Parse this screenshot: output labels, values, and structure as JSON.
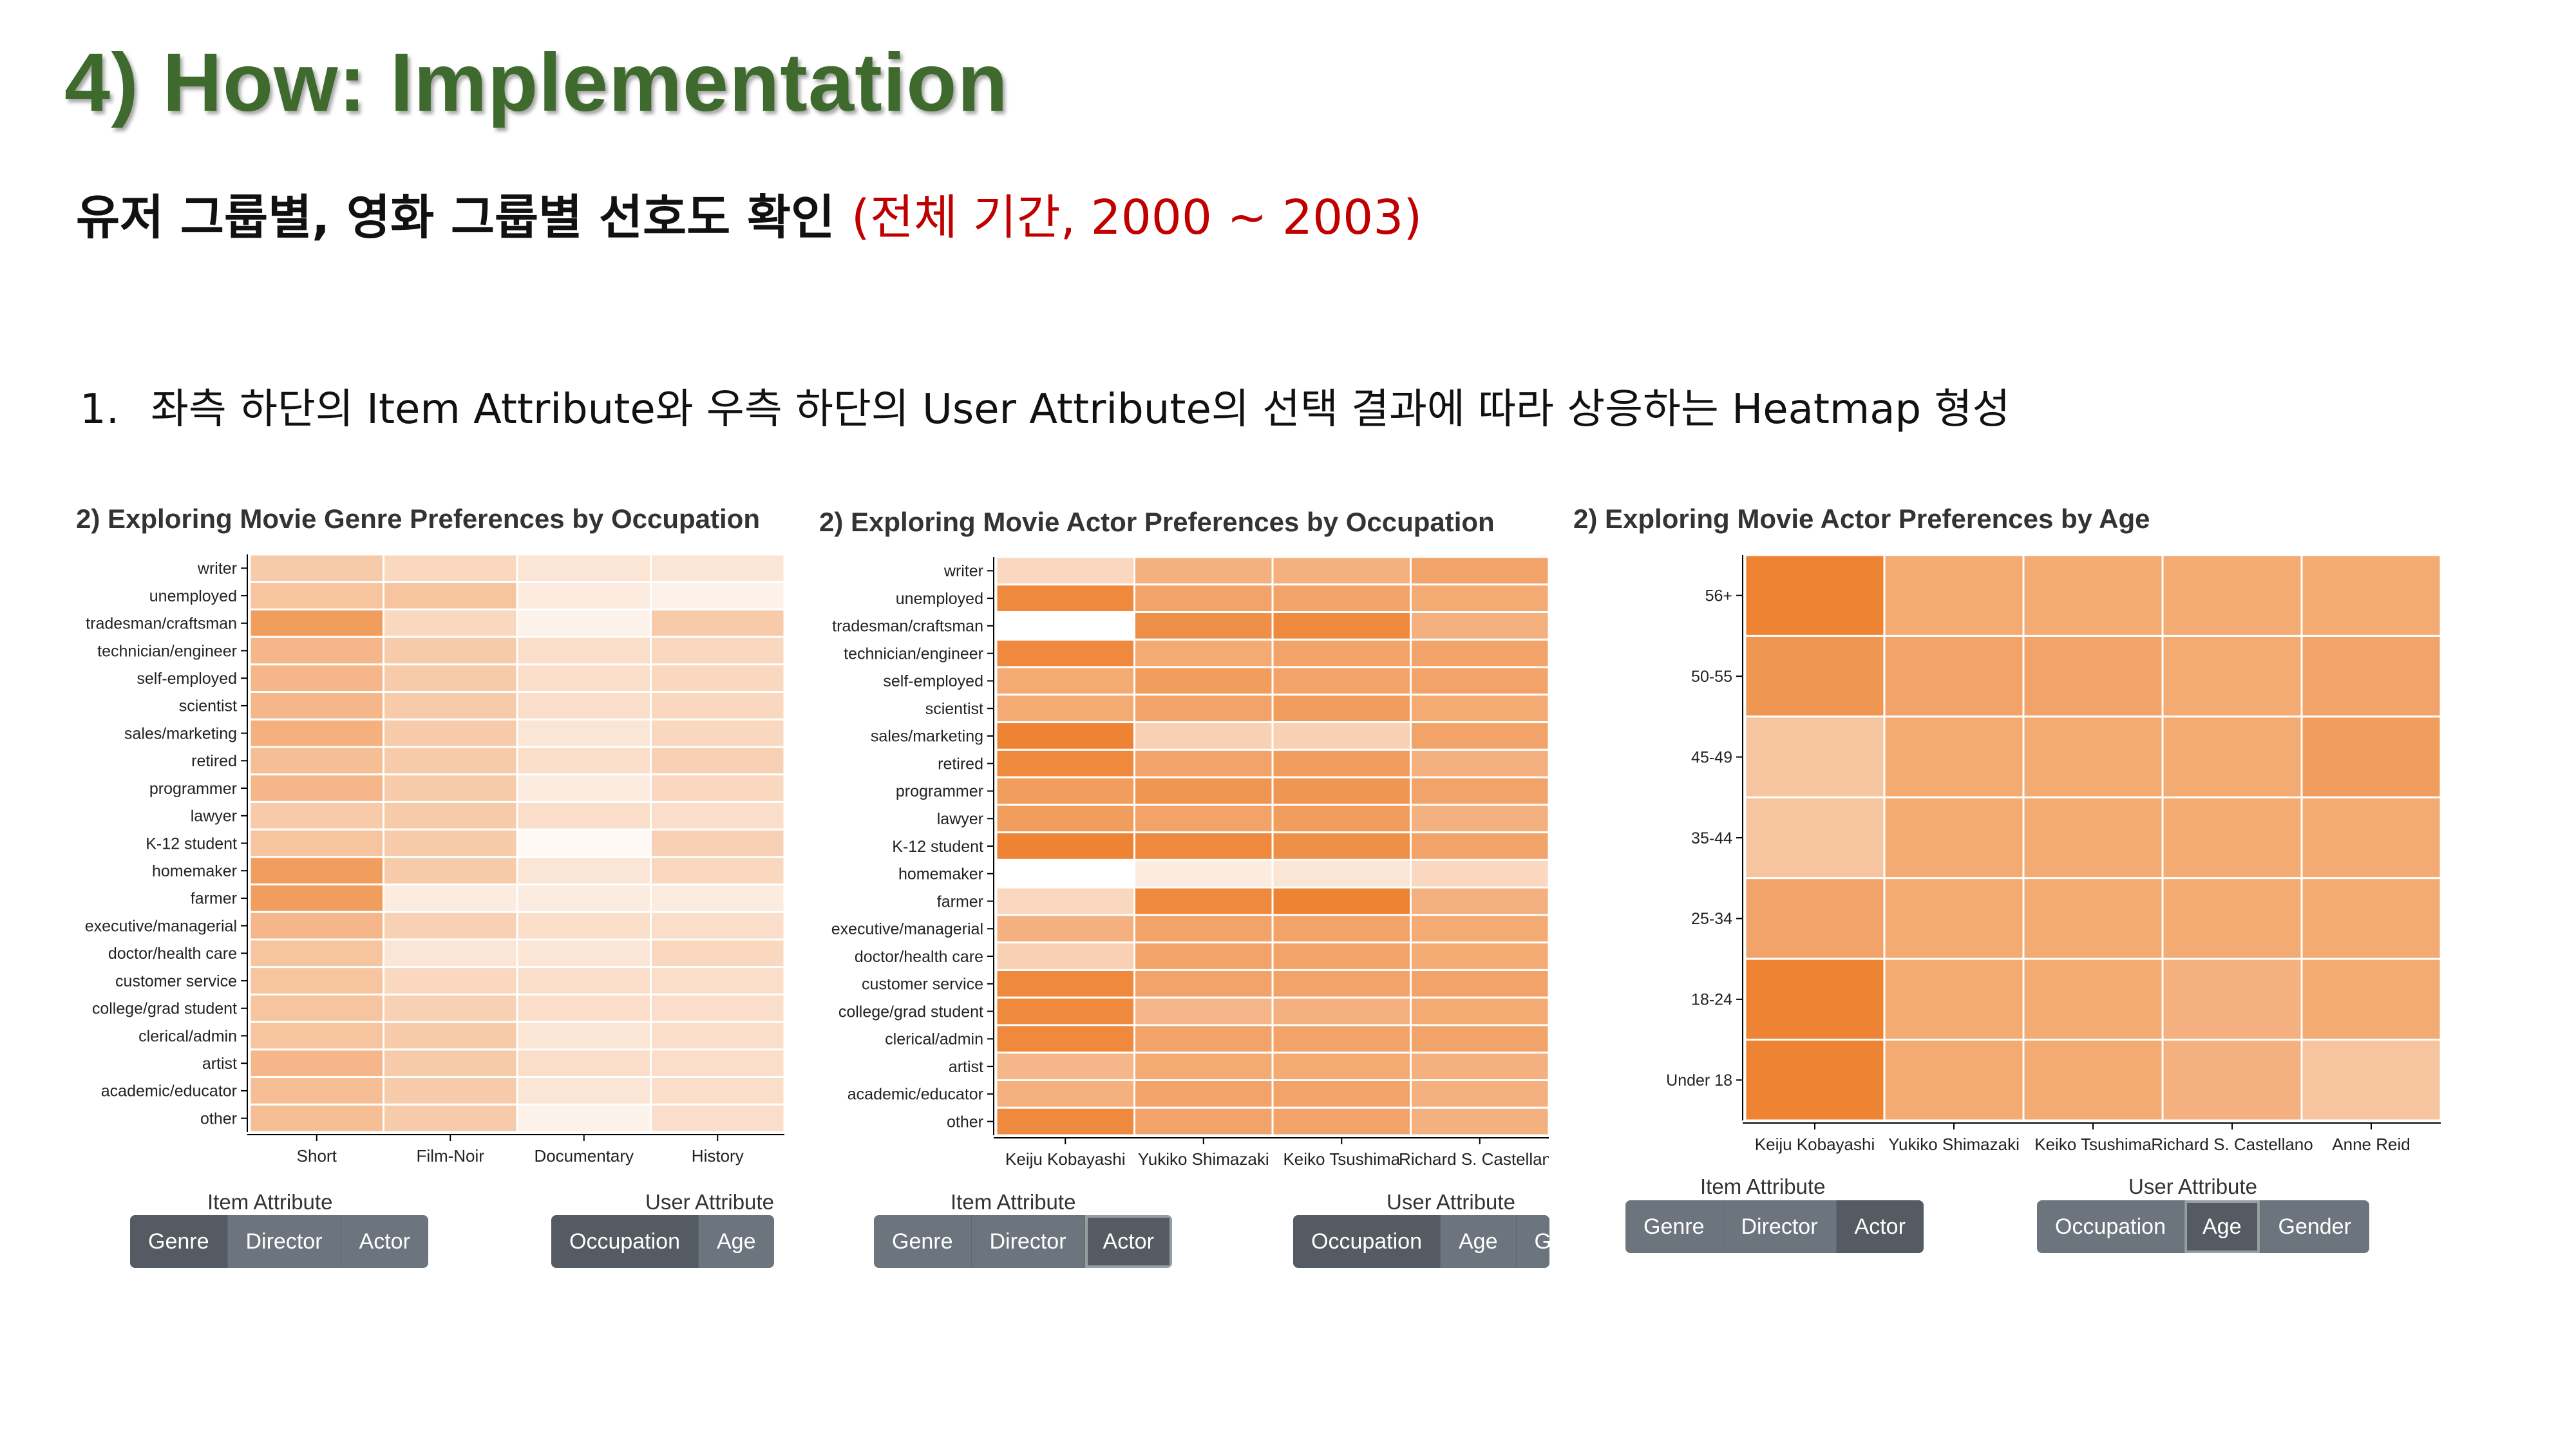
{
  "slide": {
    "title": "4) How: Implementation",
    "subtitle": "유저 그룹별, 영화 그룹별 선호도 확인",
    "subtitle_highlight": "(전체 기간, 2000 ~ 2003)",
    "bullet_number": "1.",
    "bullet_text": "좌측 하단의 Item Attribute와 우측 하단의 User Attribute의 선택 결과에 따라 상응하는 Heatmap 형성"
  },
  "colors": {
    "title": "#3f6a2d",
    "highlight": "#c00000",
    "button": "#6c757d",
    "button_active": "#545b62"
  },
  "controls": {
    "item_label": "Item Attribute",
    "user_label": "User Attribute",
    "item_buttons": [
      "Genre",
      "Director",
      "Actor"
    ],
    "user_buttons_1": [
      "Occupation",
      "Age"
    ],
    "user_buttons_2": [
      "Occupation",
      "Age",
      "Ge"
    ],
    "user_buttons_3": [
      "Occupation",
      "Age",
      "Gender"
    ]
  },
  "panels": [
    {
      "active_item": "Genre",
      "active_user": "Occupation"
    },
    {
      "active_item": "Actor",
      "active_user": "Occupation"
    },
    {
      "active_item": "Actor",
      "active_user": "Age"
    }
  ],
  "chart_data": [
    {
      "type": "heatmap",
      "title": "2) Exploring Movie Genre Preferences by Occupation",
      "x": [
        "Short",
        "Film-Noir",
        "Documentary",
        "History"
      ],
      "y": [
        "writer",
        "unemployed",
        "tradesman/craftsman",
        "technician/engineer",
        "self-employed",
        "scientist",
        "sales/marketing",
        "retired",
        "programmer",
        "lawyer",
        "K-12 student",
        "homemaker",
        "farmer",
        "executive/managerial",
        "doctor/health care",
        "customer service",
        "college/grad student",
        "clerical/admin",
        "artist",
        "academic/educator",
        "other"
      ],
      "values": [
        [
          0.4,
          0.3,
          0.2,
          0.2
        ],
        [
          0.45,
          0.45,
          0.15,
          0.1
        ],
        [
          0.75,
          0.3,
          0.1,
          0.4
        ],
        [
          0.55,
          0.4,
          0.25,
          0.3
        ],
        [
          0.55,
          0.4,
          0.25,
          0.3
        ],
        [
          0.55,
          0.4,
          0.25,
          0.3
        ],
        [
          0.6,
          0.4,
          0.2,
          0.3
        ],
        [
          0.5,
          0.4,
          0.25,
          0.35
        ],
        [
          0.55,
          0.4,
          0.15,
          0.3
        ],
        [
          0.4,
          0.4,
          0.25,
          0.25
        ],
        [
          0.45,
          0.4,
          0.05,
          0.35
        ],
        [
          0.75,
          0.4,
          0.2,
          0.3
        ],
        [
          0.75,
          0.15,
          0.15,
          0.15
        ],
        [
          0.55,
          0.35,
          0.25,
          0.25
        ],
        [
          0.45,
          0.2,
          0.2,
          0.3
        ],
        [
          0.45,
          0.3,
          0.25,
          0.25
        ],
        [
          0.45,
          0.35,
          0.25,
          0.25
        ],
        [
          0.45,
          0.4,
          0.2,
          0.25
        ],
        [
          0.55,
          0.4,
          0.25,
          0.25
        ],
        [
          0.5,
          0.4,
          0.2,
          0.25
        ],
        [
          0.5,
          0.4,
          0.1,
          0.25
        ]
      ]
    },
    {
      "type": "heatmap",
      "title": "2) Exploring Movie Actor Preferences by Occupation",
      "x": [
        "Keiju Kobayashi",
        "Yukiko Shimazaki",
        "Keiko Tsushima",
        "Richard S. Castellano"
      ],
      "y": [
        "writer",
        "unemployed",
        "tradesman/craftsman",
        "technician/engineer",
        "self-employed",
        "scientist",
        "sales/marketing",
        "retired",
        "programmer",
        "lawyer",
        "K-12 student",
        "homemaker",
        "farmer",
        "executive/managerial",
        "doctor/health care",
        "customer service",
        "college/grad student",
        "clerical/admin",
        "artist",
        "academic/educator",
        "other"
      ],
      "values": [
        [
          0.3,
          0.6,
          0.6,
          0.7
        ],
        [
          0.9,
          0.7,
          0.7,
          0.65
        ],
        [
          0.0,
          0.85,
          0.9,
          0.6
        ],
        [
          0.9,
          0.65,
          0.7,
          0.7
        ],
        [
          0.65,
          0.75,
          0.7,
          0.7
        ],
        [
          0.65,
          0.7,
          0.75,
          0.65
        ],
        [
          0.95,
          0.35,
          0.35,
          0.7
        ],
        [
          0.9,
          0.7,
          0.75,
          0.6
        ],
        [
          0.75,
          0.8,
          0.8,
          0.7
        ],
        [
          0.75,
          0.7,
          0.75,
          0.6
        ],
        [
          0.95,
          0.9,
          0.85,
          0.7
        ],
        [
          0.0,
          0.15,
          0.2,
          0.3
        ],
        [
          0.3,
          0.9,
          0.95,
          0.6
        ],
        [
          0.6,
          0.7,
          0.7,
          0.65
        ],
        [
          0.35,
          0.7,
          0.7,
          0.65
        ],
        [
          0.9,
          0.7,
          0.7,
          0.7
        ],
        [
          0.9,
          0.55,
          0.6,
          0.65
        ],
        [
          0.9,
          0.7,
          0.7,
          0.7
        ],
        [
          0.55,
          0.65,
          0.65,
          0.6
        ],
        [
          0.6,
          0.7,
          0.7,
          0.6
        ],
        [
          0.9,
          0.7,
          0.7,
          0.6
        ]
      ]
    },
    {
      "type": "heatmap",
      "title": "2) Exploring Movie Actor Preferences by Age",
      "x": [
        "Keiju Kobayashi",
        "Yukiko Shimazaki",
        "Keiko Tsushima",
        "Richard S. Castellano",
        "Anne Reid"
      ],
      "y": [
        "56+",
        "50-55",
        "45-49",
        "35-44",
        "25-34",
        "18-24",
        "Under 18"
      ],
      "values": [
        [
          0.95,
          0.65,
          0.65,
          0.65,
          0.65
        ],
        [
          0.8,
          0.7,
          0.7,
          0.65,
          0.7
        ],
        [
          0.45,
          0.65,
          0.65,
          0.65,
          0.75
        ],
        [
          0.45,
          0.65,
          0.65,
          0.65,
          0.65
        ],
        [
          0.7,
          0.65,
          0.65,
          0.65,
          0.65
        ],
        [
          0.95,
          0.65,
          0.65,
          0.6,
          0.65
        ],
        [
          0.95,
          0.65,
          0.65,
          0.6,
          0.45
        ]
      ]
    }
  ]
}
